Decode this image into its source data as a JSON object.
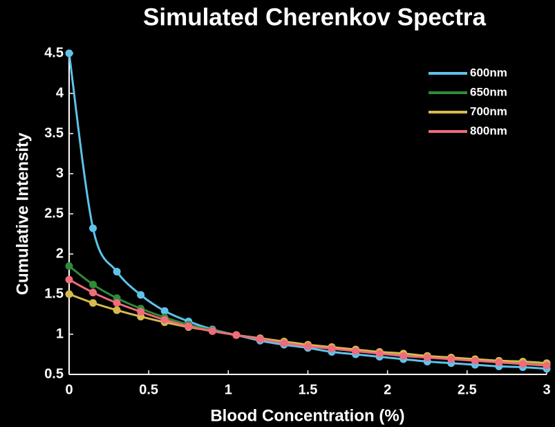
{
  "chart_data": {
    "type": "line",
    "title": "Simulated Cherenkov Spectra",
    "xlabel": "Blood Concentration (%)",
    "ylabel": "Cumulative Intensity",
    "x": [
      0,
      0.15,
      0.3,
      0.45,
      0.6,
      0.75,
      0.9,
      1.05,
      1.2,
      1.35,
      1.5,
      1.65,
      1.8,
      1.95,
      2.1,
      2.25,
      2.4,
      2.55,
      2.7,
      2.85,
      3.0
    ],
    "series": [
      {
        "name": "600nm",
        "color": "#5ec3ea",
        "values": [
          4.5,
          2.32,
          1.78,
          1.49,
          1.29,
          1.16,
          1.06,
          0.99,
          0.92,
          0.87,
          0.83,
          0.78,
          0.75,
          0.72,
          0.69,
          0.66,
          0.64,
          0.62,
          0.6,
          0.59,
          0.57
        ]
      },
      {
        "name": "650nm",
        "color": "#2e8b3a",
        "values": [
          1.85,
          1.62,
          1.45,
          1.32,
          1.21,
          1.12,
          1.05,
          0.99,
          0.94,
          0.9,
          0.86,
          0.83,
          0.8,
          0.77,
          0.74,
          0.72,
          0.7,
          0.68,
          0.66,
          0.65,
          0.63
        ]
      },
      {
        "name": "700nm",
        "color": "#d6bb4c",
        "values": [
          1.5,
          1.39,
          1.3,
          1.22,
          1.15,
          1.09,
          1.04,
          0.99,
          0.95,
          0.91,
          0.87,
          0.84,
          0.81,
          0.78,
          0.76,
          0.73,
          0.71,
          0.69,
          0.67,
          0.66,
          0.64
        ]
      },
      {
        "name": "800nm",
        "color": "#f06b7b",
        "values": [
          1.68,
          1.52,
          1.39,
          1.28,
          1.18,
          1.1,
          1.04,
          0.99,
          0.94,
          0.89,
          0.85,
          0.82,
          0.79,
          0.76,
          0.73,
          0.71,
          0.69,
          0.67,
          0.65,
          0.63,
          0.61
        ]
      }
    ],
    "xlim": [
      0,
      3
    ],
    "xticks": [
      0,
      0.5,
      1,
      1.5,
      2,
      2.5,
      3
    ],
    "ylim": [
      0.5,
      4.5
    ],
    "yticks": [
      0.5,
      1,
      1.5,
      2,
      2.5,
      3,
      3.5,
      4,
      4.5
    ],
    "legend": "upper right",
    "grid": false
  }
}
